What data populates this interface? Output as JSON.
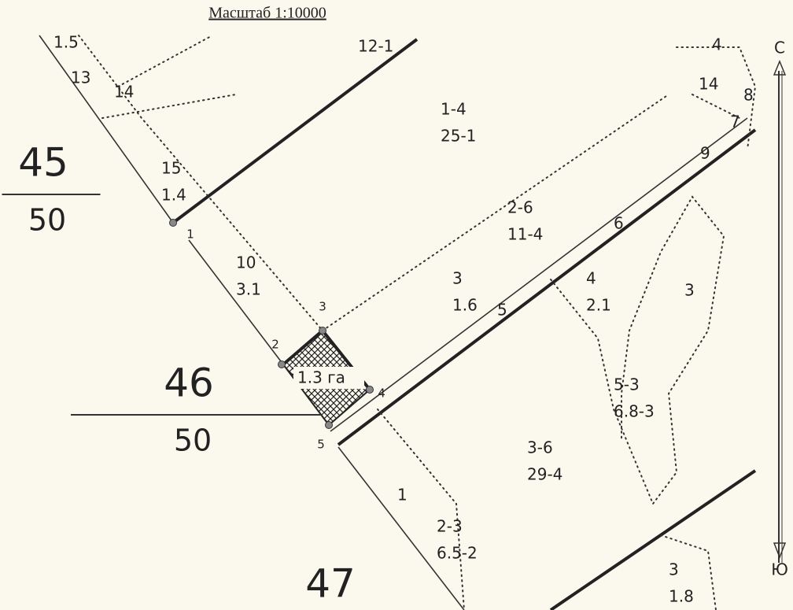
{
  "header": {
    "scale": "Масштаб 1:10000"
  },
  "quarters": [
    {
      "number": "45",
      "denominator": "50"
    },
    {
      "number": "46",
      "denominator": "50"
    },
    {
      "number": "47"
    }
  ],
  "plots": [
    {
      "number": "15",
      "value": "1.4"
    },
    {
      "number": "1-4",
      "value": "25-1"
    },
    {
      "number": "10",
      "value": "3.1"
    },
    {
      "number": "2-6",
      "value": "11-4"
    },
    {
      "number": "3",
      "value": "1.6"
    },
    {
      "number": "4",
      "value": "2.1"
    },
    {
      "number": "5-3",
      "value": "6.8-3"
    },
    {
      "number": "3-6",
      "value": "29-4"
    },
    {
      "number": "2-3",
      "value": "6.5-2"
    },
    {
      "number": "3",
      "value": "1.8"
    }
  ],
  "labels": [
    "1.5",
    "13",
    "14",
    "12-1",
    "14",
    "4",
    "8",
    "7",
    "9",
    "6",
    "5",
    "3",
    "1"
  ],
  "points": [
    "1",
    "2",
    "3",
    "4",
    "5"
  ],
  "area": "1.3 га",
  "compass": {
    "north": "С",
    "south": "Ю"
  }
}
